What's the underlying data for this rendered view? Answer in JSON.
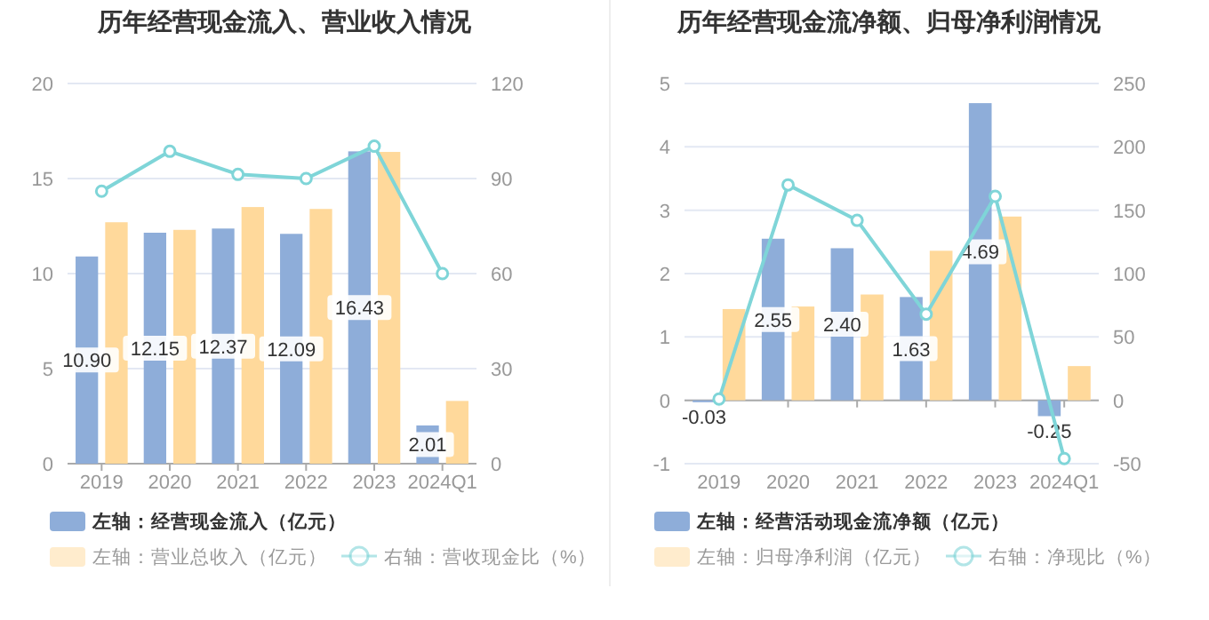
{
  "chart_data": [
    {
      "type": "bar",
      "title": "历年经营现金流入、营业收入情况",
      "categories": [
        "2019",
        "2020",
        "2021",
        "2022",
        "2023",
        "2024Q1"
      ],
      "series": [
        {
          "name": "左轴：经营现金流入（亿元）",
          "color": "#8eadd9",
          "values": [
            10.9,
            12.15,
            12.37,
            12.09,
            16.43,
            2.01
          ],
          "value_labels": [
            "10.90",
            "12.15",
            "12.37",
            "12.09",
            "16.43",
            "2.01"
          ]
        },
        {
          "name": "左轴：营业总收入（亿元）",
          "color": "#ffd99b",
          "values": [
            12.7,
            12.3,
            13.5,
            13.4,
            16.4,
            3.3
          ]
        },
        {
          "name": "右轴：营收现金比（%）",
          "type": "line",
          "axis": "y2",
          "color": "#7fd5d8",
          "marker": "circle",
          "values": [
            86,
            98.6,
            91.3,
            90,
            100.2,
            60
          ]
        }
      ],
      "ylim": [
        0,
        20
      ],
      "yticks": [
        0,
        5,
        10,
        15,
        20
      ],
      "y2lim": [
        0,
        120
      ],
      "y2ticks": [
        0,
        30,
        60,
        90,
        120
      ],
      "grid": "y",
      "legend": "bottom"
    },
    {
      "type": "bar",
      "title": "历年经营现金流净额、归母净利润情况",
      "categories": [
        "2019",
        "2020",
        "2021",
        "2022",
        "2023",
        "2024Q1"
      ],
      "series": [
        {
          "name": "左轴：经营活动现金流净额（亿元）",
          "color": "#8eadd9",
          "values": [
            -0.03,
            2.55,
            2.4,
            1.63,
            4.69,
            -0.25
          ],
          "value_labels": [
            "-0.03",
            "2.55",
            "2.40",
            "1.63",
            "4.69",
            "-0.25"
          ]
        },
        {
          "name": "左轴：归母净利润（亿元）",
          "color": "#ffd99b",
          "values": [
            1.44,
            1.48,
            1.67,
            2.36,
            2.9,
            0.54
          ]
        },
        {
          "name": "右轴：净现比（%）",
          "type": "line",
          "axis": "y2",
          "color": "#7fd5d8",
          "marker": "circle",
          "values": [
            1,
            170,
            142,
            68,
            161,
            -46
          ]
        }
      ],
      "ylim": [
        -1,
        5
      ],
      "yticks": [
        -1,
        0,
        1,
        2,
        3,
        4,
        5
      ],
      "y2lim": [
        -50,
        250
      ],
      "y2ticks": [
        -50,
        0,
        50,
        100,
        150,
        200,
        250
      ],
      "grid": "y",
      "legend": "bottom"
    }
  ]
}
